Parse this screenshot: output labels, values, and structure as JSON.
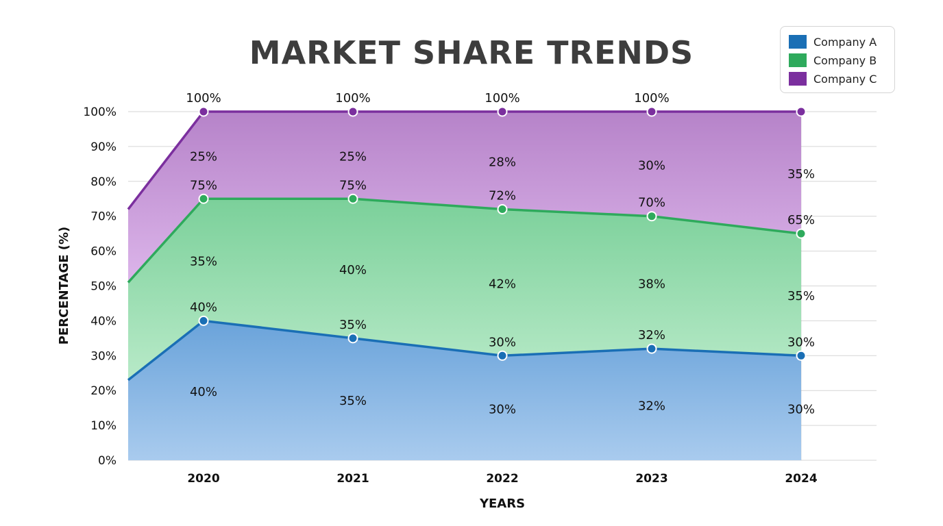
{
  "chart_data": {
    "type": "area",
    "stacked": true,
    "title": "MARKET SHARE TRENDS",
    "xlabel": "YEARS",
    "ylabel": "PERCENTAGE (%)",
    "categories": [
      "2020",
      "2021",
      "2022",
      "2023",
      "2024"
    ],
    "ylim": [
      0,
      100
    ],
    "yticks": [
      "0%",
      "10%",
      "20%",
      "30%",
      "40%",
      "50%",
      "60%",
      "70%",
      "80%",
      "90%",
      "100%"
    ],
    "grid": true,
    "legend_position": "top-right",
    "left_edge_cumulative": [
      23,
      51,
      72
    ],
    "series": [
      {
        "name": "Company A",
        "color": "#1a6fb5",
        "values": [
          40,
          35,
          30,
          32,
          30
        ],
        "cumulative": [
          40,
          35,
          30,
          32,
          30
        ],
        "top_labels": [
          "40%",
          "35%",
          "30%",
          "32%",
          "30%"
        ],
        "band_labels": [
          "40%",
          "35%",
          "30%",
          "32%",
          "30%"
        ]
      },
      {
        "name": "Company B",
        "color": "#2eaa5c",
        "values": [
          35,
          40,
          42,
          38,
          35
        ],
        "cumulative": [
          75,
          75,
          72,
          70,
          65
        ],
        "top_labels": [
          "75%",
          "75%",
          "72%",
          "70%",
          "65%"
        ],
        "band_labels": [
          "35%",
          "40%",
          "42%",
          "38%",
          "35%"
        ]
      },
      {
        "name": "Company C",
        "color": "#7b2f9e",
        "values": [
          25,
          25,
          28,
          30,
          35
        ],
        "cumulative": [
          100,
          100,
          100,
          100,
          100
        ],
        "top_labels": [
          "100%",
          "100%",
          "100%",
          "100%",
          null
        ],
        "band_labels": [
          "25%",
          "25%",
          "28%",
          "30%",
          "35%"
        ]
      }
    ]
  }
}
